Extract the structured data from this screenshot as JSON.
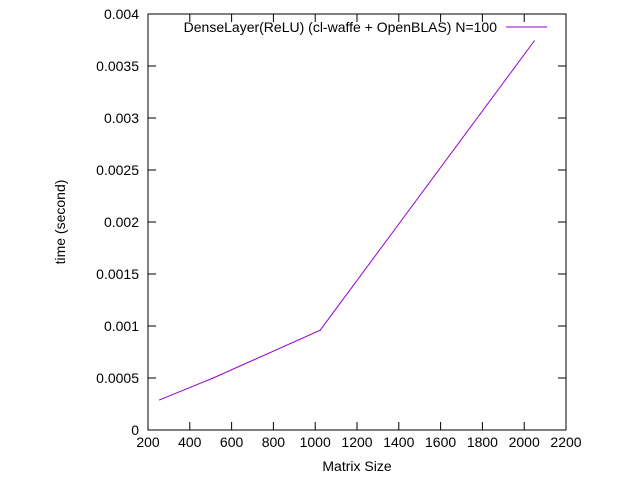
{
  "chart_data": {
    "type": "line",
    "xlabel": "Matrix Size",
    "ylabel": "time (second)",
    "xlim": [
      200,
      2200
    ],
    "ylim": [
      0,
      0.004
    ],
    "xticks": [
      "200",
      "400",
      "600",
      "800",
      "1000",
      "1200",
      "1400",
      "1600",
      "1800",
      "2000",
      "2200"
    ],
    "yticks": [
      "0",
      "0.0005",
      "0.001",
      "0.0015",
      "0.002",
      "0.0025",
      "0.003",
      "0.0035",
      "0.004"
    ],
    "grid": false,
    "legend_position": "top-right",
    "series": [
      {
        "name": "DenseLayer(ReLU) (cl-waffe + OpenBLAS) N=100",
        "color": "#9400d3",
        "x": [
          256,
          512,
          1024,
          2048
        ],
        "y": [
          0.00029,
          0.0005,
          0.00096,
          0.00374
        ]
      }
    ]
  }
}
